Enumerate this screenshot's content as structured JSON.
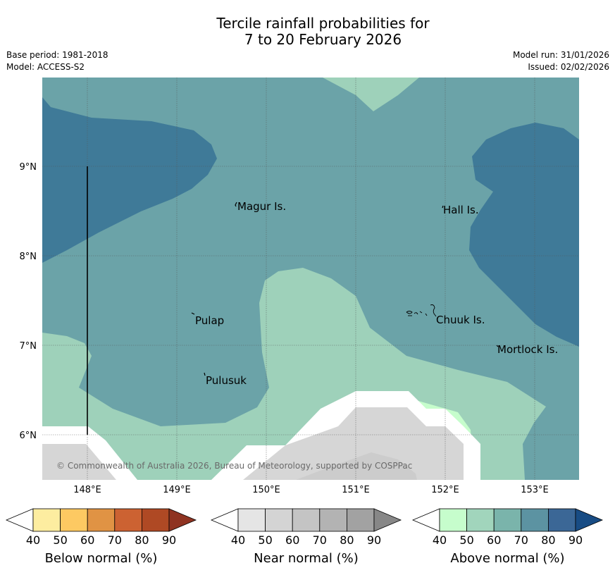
{
  "title_line1": "Tercile rainfall probabilities for",
  "title_line2": "7 to 20 February 2026",
  "base_period": "Base period: 1981-2018",
  "model": "Model: ACCESS-S2",
  "model_run": "Model run: 31/01/2026",
  "issued": "Issued: 02/02/2026",
  "copyright": "© Commonwealth of Australia 2026, Bureau of Meteorology, supported by COSPPac",
  "lat_labels": [
    "9°N",
    "8°N",
    "7°N",
    "6°N"
  ],
  "lon_labels": [
    "148°E",
    "149°E",
    "150°E",
    "151°E",
    "152°E",
    "153°E"
  ],
  "places": [
    "Magur Is.",
    "Hall Is.",
    "Pulap",
    "Chuuk Is.",
    "Mortlock Is.",
    "Pulusuk"
  ],
  "colorbars": [
    {
      "title": "Below normal (%)",
      "ticks": [
        "40",
        "50",
        "60",
        "70",
        "80",
        "90"
      ],
      "colors": [
        "#ffffff",
        "#fdeda0",
        "#fdc962",
        "#e09344",
        "#cc6232",
        "#af4924",
        "#8f3321"
      ]
    },
    {
      "title": "Near normal (%)",
      "ticks": [
        "40",
        "50",
        "60",
        "70",
        "80",
        "90"
      ],
      "colors": [
        "#ffffff",
        "#e5e5e5",
        "#d4d4d4",
        "#c4c4c4",
        "#b3b3b3",
        "#a2a2a2",
        "#878787"
      ]
    },
    {
      "title": "Above normal (%)",
      "ticks": [
        "40",
        "50",
        "60",
        "70",
        "80",
        "90"
      ],
      "colors": [
        "#ffffff",
        "#c6fdcc",
        "#a1d5bc",
        "#7ab4ab",
        "#5c93a2",
        "#3b6796",
        "#184c84"
      ]
    }
  ]
}
